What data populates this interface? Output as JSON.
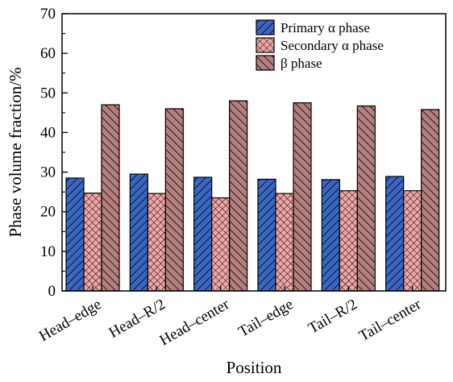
{
  "chart_data": {
    "type": "bar",
    "title": "",
    "xlabel": "Position",
    "ylabel": "Phase volume fraction/%",
    "ylim": [
      0,
      70
    ],
    "yticks": [
      0,
      10,
      20,
      30,
      40,
      50,
      60,
      70
    ],
    "grid": false,
    "legend_position": "top-right",
    "categories": [
      "Head–edge",
      "Head–R/2",
      "Head–center",
      "Tail–edge",
      "Tail–R/2",
      "Tail–center"
    ],
    "series": [
      {
        "name": "Primary α phase",
        "color": "#3a66c4",
        "pattern": "diagonal-hatch",
        "values": [
          28.5,
          29.5,
          28.7,
          28.2,
          28.1,
          28.9
        ]
      },
      {
        "name": "Secondary α phase",
        "color": "#f0a6a6",
        "pattern": "crosshatch",
        "values": [
          24.7,
          24.6,
          23.5,
          24.6,
          25.3,
          25.3
        ]
      },
      {
        "name": "β phase",
        "color": "#b57f7f",
        "pattern": "back-diagonal-hatch",
        "values": [
          47.0,
          46.0,
          48.0,
          47.5,
          46.7,
          45.8
        ]
      }
    ]
  }
}
